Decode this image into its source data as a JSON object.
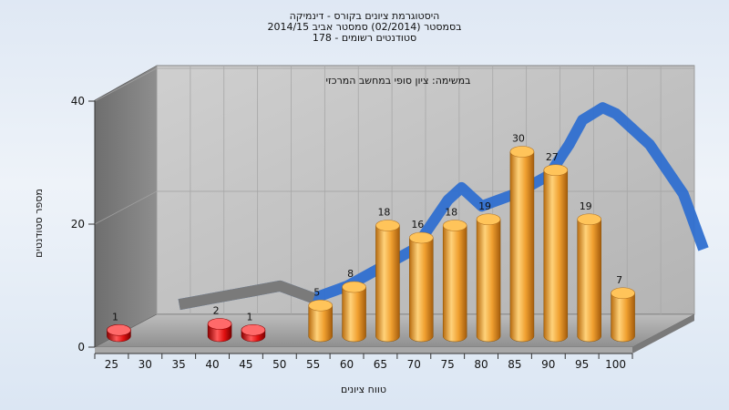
{
  "chart_data": {
    "type": "bar",
    "title_lines": [
      "היסטוגרמת ציונים בקורס - דינמיקה",
      "בסמסטר  (02/2014)  סמסטר אביב 2014/15",
      "סטודנטים רשומים - 178"
    ],
    "annotation": "במשימה: ציון סופי במחשב המרכזי",
    "xlabel": "טווח ציונים",
    "ylabel": "מספר סטודנטים",
    "categories": [
      "25",
      "30",
      "35",
      "40",
      "45",
      "50",
      "55",
      "60",
      "65",
      "70",
      "75",
      "80",
      "85",
      "90",
      "95",
      "100"
    ],
    "ylim": [
      0,
      40
    ],
    "yticks": [
      "0",
      "20",
      "40"
    ],
    "series": [
      {
        "values": [
          1,
          0,
          0,
          2,
          1,
          0,
          5,
          8,
          18,
          16,
          18,
          19,
          30,
          27,
          19,
          7
        ],
        "colors": {
          "fail": "#e01010",
          "pass": "#f0a030"
        }
      }
    ],
    "curve": [
      [
        30,
        4
      ],
      [
        35,
        5
      ],
      [
        40,
        6
      ],
      [
        45,
        7
      ],
      [
        50,
        5
      ],
      [
        55,
        7
      ],
      [
        60,
        10
      ],
      [
        65,
        13
      ],
      [
        70,
        21
      ],
      [
        72,
        23
      ],
      [
        75,
        20
      ],
      [
        80,
        22
      ],
      [
        85,
        25
      ],
      [
        88,
        30
      ],
      [
        90,
        34
      ],
      [
        93,
        36
      ],
      [
        95,
        35
      ],
      [
        100,
        30
      ],
      [
        105,
        22
      ],
      [
        108,
        13
      ]
    ],
    "curve_colors": {
      "shadow": "#7a7a7a",
      "main": "#2f6fd0"
    },
    "legend": "none",
    "grid": true
  }
}
